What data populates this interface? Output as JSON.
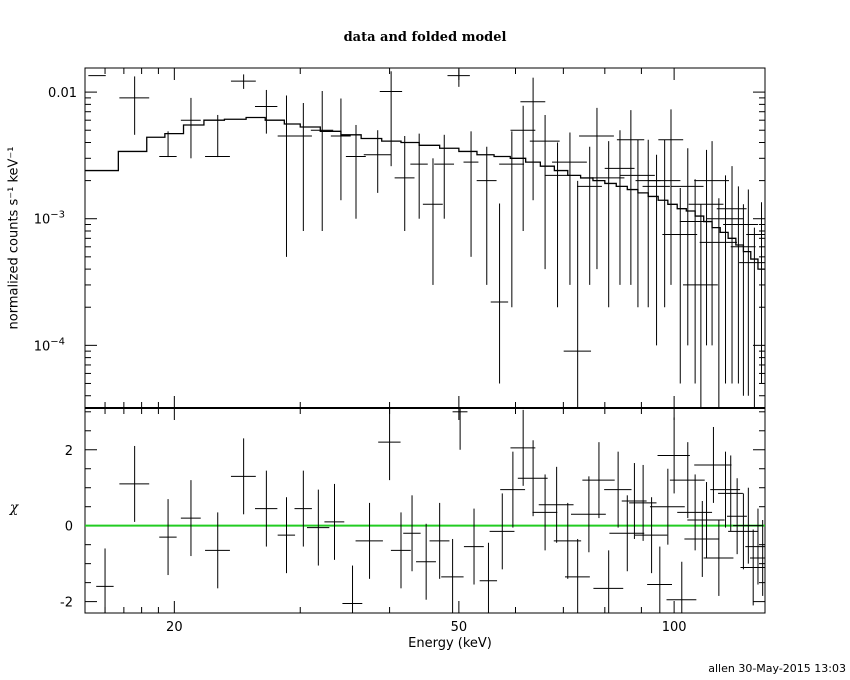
{
  "title": "data and folded model",
  "footer": "allen 30-May-2015 13:03",
  "chart_data": [
    {
      "panel": "spectrum",
      "type": "scatter",
      "title": "data and folded model",
      "xlabel": "Energy (keV)",
      "ylabel": "normalized counts s⁻¹ keV⁻¹",
      "xscale": "log",
      "yscale": "log",
      "xlim": [
        15,
        134
      ],
      "ylim": [
        3.2e-05,
        0.0155
      ],
      "x_ticks": [
        {
          "value": 20,
          "label": "20"
        },
        {
          "value": 50,
          "label": "50"
        },
        {
          "value": 100,
          "label": "100"
        }
      ],
      "y_ticks": [
        {
          "value": 0.01,
          "label": "0.01",
          "sup": ""
        },
        {
          "value": 0.001,
          "label": "10",
          "sup": "−3"
        },
        {
          "value": 0.0001,
          "label": "10",
          "sup": "−4"
        }
      ],
      "series": [
        {
          "kind": "data",
          "color": "#000000",
          "points": [
            [
              15.6,
              0.0135,
              0.0007,
              0,
              0
            ],
            [
              17.6,
              0.009,
              0.0012,
              0.0044,
              0.0043
            ],
            [
              19.6,
              0.0031,
              0.0007,
              3.2e-05,
              0.0018
            ],
            [
              21.1,
              0.006,
              0.0008,
              0.003,
              0.003
            ],
            [
              23.0,
              0.0031,
              0.001,
              3.2e-05,
              0.0035
            ],
            [
              25.0,
              0.0122,
              0.001,
              0.0016,
              0.0016
            ],
            [
              26.9,
              0.0077,
              0.0009,
              0.003,
              0.0027
            ],
            [
              28.7,
              0.0045,
              0.0007,
              0.004,
              0.0049
            ],
            [
              30.3,
              0.0045,
              0.0007,
              0.0037,
              0.0037
            ],
            [
              32.2,
              0.005,
              0.0009,
              0.0042,
              0.0052
            ],
            [
              34.2,
              0.0045,
              0.0008,
              0.0031,
              0.0044
            ],
            [
              35.9,
              0.0031,
              0.0008,
              0.0021,
              0.0024
            ],
            [
              38.5,
              0.0032,
              0.0011,
              0.0016,
              0.0018
            ],
            [
              40.2,
              0.0101,
              0.0009,
              0.0075,
              0.0045
            ],
            [
              42.0,
              0.0021,
              0.0008,
              0.0013,
              0.0024
            ],
            [
              44.0,
              0.0027,
              0.0007,
              0.0017,
              0.002
            ],
            [
              46.0,
              0.0013,
              0.0008,
              0.001,
              0.0017
            ],
            [
              47.7,
              0.0027,
              0.0008,
              0.0017,
              0.0019
            ],
            [
              50.0,
              0.0135,
              0.0009,
              0.0025,
              0.0016
            ],
            [
              52.0,
              0.0028,
              0.0006,
              0.0023,
              0.0021
            ],
            [
              54.7,
              0.002,
              0.0008,
              0.0017,
              0.0017
            ],
            [
              57.0,
              0.00022,
              0.0007,
              0.00017,
              0.0011
            ],
            [
              59.3,
              0.0027,
              0.001,
              0.0025,
              0.0022
            ],
            [
              61.5,
              0.005,
              0.001,
              0.0042,
              0.0028
            ],
            [
              63.5,
              0.0084,
              0.001,
              0.007,
              0.0046
            ],
            [
              66.0,
              0.0041,
              0.0012,
              0.0037,
              0.0025
            ],
            [
              68.7,
              0.0022,
              0.001,
              0.002,
              0.0018
            ],
            [
              71.5,
              0.0028,
              0.0014,
              0.0025,
              0.002
            ],
            [
              73.3,
              9e-05,
              0.0011,
              5.8e-05,
              0.0019
            ],
            [
              76.2,
              0.0018,
              0.001,
              0.0015,
              0.0019
            ],
            [
              78.0,
              0.0045,
              0.0014,
              0.0041,
              0.003
            ],
            [
              81.0,
              0.0021,
              0.0013,
              0.0019,
              0.002
            ],
            [
              84.0,
              0.0025,
              0.0012,
              0.0022,
              0.0025
            ],
            [
              87.0,
              0.0042,
              0.0011,
              0.0039,
              0.003
            ],
            [
              89.0,
              0.0022,
              0.0014,
              0.002,
              0.002
            ],
            [
              92.0,
              0.002,
              0.001,
              0.0018,
              0.0022
            ],
            [
              94.5,
              0.0018,
              0.0011,
              0.0017,
              0.0014
            ],
            [
              97.0,
              0.002,
              0.0013,
              0.0018,
              0.0022
            ],
            [
              99.0,
              0.0042,
              0.001,
              0.0039,
              0.0031
            ],
            [
              102.0,
              0.00075,
              0.0014,
              0.0007,
              0.001
            ],
            [
              104.5,
              0.0018,
              0.0013,
              0.0017,
              0.0018
            ],
            [
              107.0,
              0.00095,
              0.0012,
              0.0009,
              0.0011
            ],
            [
              109.0,
              0.0003,
              0.0014,
              0.00028,
              0.001
            ],
            [
              111.0,
              0.0013,
              0.0014,
              0.0012,
              0.0022
            ],
            [
              113.0,
              0.002,
              0.0014,
              0.0019,
              0.0021
            ],
            [
              115.5,
              0.00065,
              0.0015,
              0.00062,
              0.0008
            ],
            [
              118.0,
              0.001,
              0.0015,
              0.00095,
              0.0012
            ],
            [
              120.5,
              0.0012,
              0.0012,
              0.00115,
              0.0014
            ],
            [
              123.0,
              0.0009,
              0.0012,
              0.00085,
              0.0009
            ],
            [
              125.0,
              0.0006,
              0.001,
              0.00056,
              0.0007
            ],
            [
              127.0,
              0.0009,
              0.0008,
              0.00086,
              0.0008
            ],
            [
              129.5,
              0.00045,
              0.0012,
              0.00042,
              0.0004
            ],
            [
              132.5,
              0.00075,
              0.0012,
              0.0007,
              0.0006
            ]
          ]
        },
        {
          "kind": "model",
          "color": "#000000",
          "step_edges": [
            15.0,
            16.7,
            18.3,
            19.4,
            20.6,
            22.0,
            23.5,
            25.2,
            26.8,
            28.5,
            30.0,
            32.0,
            34.2,
            36.5,
            39.0,
            41.5,
            44.0,
            47.0,
            50.0,
            53.0,
            56.0,
            59.0,
            62.0,
            65.0,
            68.0,
            71.0,
            74.0,
            77.0,
            80.0,
            83.0,
            86.0,
            89.0,
            92.0,
            95.0,
            98.0,
            101.0,
            104.0,
            107.0,
            110.0,
            113.0,
            116.0,
            119.0,
            122.0,
            125.0,
            128.0,
            131.0,
            134.0
          ],
          "values": [
            0.0024,
            0.0034,
            0.0044,
            0.0047,
            0.0055,
            0.006,
            0.0061,
            0.0063,
            0.006,
            0.0056,
            0.0053,
            0.0049,
            0.0046,
            0.0043,
            0.0041,
            0.004,
            0.0038,
            0.0036,
            0.0034,
            0.0032,
            0.0031,
            0.003,
            0.0028,
            0.0026,
            0.0024,
            0.0022,
            0.0021,
            0.002,
            0.0019,
            0.0018,
            0.0017,
            0.0016,
            0.0015,
            0.0014,
            0.0013,
            0.0012,
            0.00115,
            0.00105,
            0.00095,
            0.00085,
            0.00078,
            0.0007,
            0.00062,
            0.00055,
            0.00048,
            0.0004
          ]
        }
      ]
    },
    {
      "panel": "residuals",
      "type": "scatter",
      "xlabel": "Energy (keV)",
      "ylabel": "χ",
      "xscale": "log",
      "xlim": [
        15,
        134
      ],
      "ylim": [
        -2.3,
        3.1
      ],
      "x_ticks": [
        {
          "value": 20,
          "label": "20"
        },
        {
          "value": 50,
          "label": "50"
        },
        {
          "value": 100,
          "label": "100"
        }
      ],
      "y_ticks": [
        {
          "value": 2,
          "label": "2"
        },
        {
          "value": 0,
          "label": "0"
        },
        {
          "value": -2,
          "label": "-2"
        }
      ],
      "zero_line_color": "#22cc22",
      "points": [
        [
          16.0,
          -1.6,
          1.0,
          1.0
        ],
        [
          17.6,
          1.1,
          1.0,
          1.0
        ],
        [
          19.6,
          -0.3,
          1.0,
          1.0
        ],
        [
          21.1,
          0.2,
          1.0,
          1.0
        ],
        [
          23.0,
          -0.65,
          1.0,
          1.0
        ],
        [
          25.0,
          1.3,
          1.0,
          1.0
        ],
        [
          26.9,
          0.45,
          1.0,
          1.0
        ],
        [
          28.7,
          -0.25,
          1.0,
          1.0
        ],
        [
          30.3,
          0.45,
          1.0,
          1.0
        ],
        [
          31.8,
          -0.05,
          1.0,
          1.0
        ],
        [
          33.5,
          0.1,
          1.0,
          1.0
        ],
        [
          35.5,
          -2.05,
          1.0,
          1.0
        ],
        [
          37.5,
          -0.4,
          1.0,
          1.0
        ],
        [
          40.0,
          2.2,
          1.0,
          1.0
        ],
        [
          41.5,
          -0.65,
          1.0,
          1.0
        ],
        [
          43.0,
          -0.2,
          1.0,
          1.0
        ],
        [
          45.0,
          -0.95,
          1.0,
          1.0
        ],
        [
          47.0,
          -0.4,
          1.0,
          1.0
        ],
        [
          49.0,
          -1.35,
          1.0,
          1.0
        ],
        [
          50.2,
          3.0,
          1.0,
          1.0
        ],
        [
          52.5,
          -0.55,
          1.0,
          1.0
        ],
        [
          55.0,
          -1.45,
          1.0,
          1.0
        ],
        [
          57.5,
          -0.15,
          1.0,
          1.0
        ],
        [
          59.5,
          0.95,
          1.0,
          1.0
        ],
        [
          61.5,
          2.05,
          1.0,
          1.0
        ],
        [
          63.5,
          1.25,
          1.0,
          1.0
        ],
        [
          66.0,
          0.35,
          1.0,
          1.0
        ],
        [
          68.5,
          0.55,
          1.0,
          1.0
        ],
        [
          71.0,
          -0.4,
          1.0,
          1.0
        ],
        [
          73.3,
          -1.35,
          1.0,
          1.0
        ],
        [
          76.0,
          0.3,
          1.0,
          1.0
        ],
        [
          78.5,
          1.2,
          1.0,
          1.0
        ],
        [
          81.0,
          -1.65,
          1.0,
          1.0
        ],
        [
          83.5,
          0.95,
          1.0,
          1.0
        ],
        [
          86.0,
          -0.2,
          1.0,
          1.0
        ],
        [
          88.0,
          0.65,
          1.0,
          1.0
        ],
        [
          90.5,
          0.6,
          1.0,
          1.0
        ],
        [
          93.0,
          -0.25,
          1.0,
          1.0
        ],
        [
          95.5,
          -1.55,
          1.0,
          1.0
        ],
        [
          98.0,
          0.5,
          1.0,
          1.0
        ],
        [
          100.0,
          1.85,
          1.0,
          1.0
        ],
        [
          102.5,
          -1.95,
          1.0,
          1.0
        ],
        [
          104.5,
          1.2,
          1.0,
          1.0
        ],
        [
          107.0,
          0.35,
          1.0,
          1.0
        ],
        [
          109.5,
          -0.35,
          1.0,
          1.0
        ],
        [
          111.0,
          0.15,
          1.0,
          1.0
        ],
        [
          113.5,
          1.6,
          1.0,
          1.0
        ],
        [
          115.5,
          -0.85,
          1.0,
          1.0
        ],
        [
          118.0,
          0.95,
          1.0,
          1.0
        ],
        [
          120.0,
          0.85,
          1.0,
          1.0
        ],
        [
          122.5,
          0.25,
          1.0,
          1.0
        ],
        [
          125.0,
          -0.15,
          1.0,
          1.0
        ],
        [
          127.0,
          0.0,
          1.0,
          1.0
        ],
        [
          129.0,
          -1.1,
          1.0,
          1.0
        ],
        [
          131.0,
          -0.55,
          1.0,
          1.0
        ],
        [
          133.0,
          -0.85,
          1.0,
          1.0
        ]
      ]
    }
  ]
}
